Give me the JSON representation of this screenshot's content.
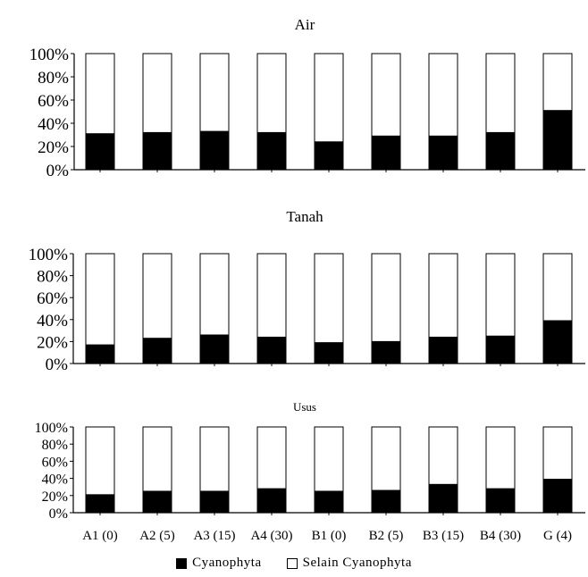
{
  "chart_data": [
    {
      "type": "bar",
      "stacked": true,
      "normalized": true,
      "title": "Air",
      "categories": [
        "A1 (0)",
        "A2 (5)",
        "A3 (15)",
        "A4 (30)",
        "B1 (0)",
        "B2 (5)",
        "B3 (15)",
        "B4 (30)",
        "G (4)"
      ],
      "series": [
        {
          "name": "Cyanophyta",
          "color": "#000000",
          "values": [
            31,
            32,
            33,
            32,
            24,
            29,
            29,
            32,
            51
          ]
        },
        {
          "name": "Selain Cyanophyta",
          "color": "#ffffff",
          "values": [
            69,
            68,
            67,
            68,
            76,
            71,
            71,
            68,
            49
          ]
        }
      ],
      "ylim": [
        0,
        100
      ],
      "yticks": [
        "0%",
        "20%",
        "40%",
        "60%",
        "80%",
        "100%"
      ],
      "show_category_labels": false,
      "grid": false
    },
    {
      "type": "bar",
      "stacked": true,
      "normalized": true,
      "title": "Tanah",
      "categories": [
        "A1 (0)",
        "A2 (5)",
        "A3 (15)",
        "A4 (30)",
        "B1 (0)",
        "B2 (5)",
        "B3 (15)",
        "B4 (30)",
        "G (4)"
      ],
      "series": [
        {
          "name": "Cyanophyta",
          "color": "#000000",
          "values": [
            17,
            23,
            26,
            24,
            19,
            20,
            24,
            25,
            39
          ]
        },
        {
          "name": "Selain Cyanophyta",
          "color": "#ffffff",
          "values": [
            83,
            77,
            74,
            76,
            81,
            80,
            76,
            75,
            61
          ]
        }
      ],
      "ylim": [
        0,
        100
      ],
      "yticks": [
        "0%",
        "20%",
        "40%",
        "60%",
        "80%",
        "100%"
      ],
      "show_category_labels": false,
      "grid": false
    },
    {
      "type": "bar",
      "stacked": true,
      "normalized": true,
      "title": "Usus",
      "categories": [
        "A1 (0)",
        "A2 (5)",
        "A3 (15)",
        "A4 (30)",
        "B1 (0)",
        "B2 (5)",
        "B3 (15)",
        "B4 (30)",
        "G (4)"
      ],
      "series": [
        {
          "name": "Cyanophyta",
          "color": "#000000",
          "values": [
            21,
            25,
            25,
            28,
            25,
            26,
            33,
            28,
            39
          ]
        },
        {
          "name": "Selain Cyanophyta",
          "color": "#ffffff",
          "values": [
            79,
            75,
            75,
            72,
            75,
            74,
            67,
            72,
            61
          ]
        }
      ],
      "ylim": [
        0,
        100
      ],
      "yticks": [
        "0%",
        "20%",
        "40%",
        "60%",
        "80%",
        "100%"
      ],
      "show_category_labels": true,
      "grid": false
    }
  ],
  "legend": {
    "placement": "bottom-center",
    "items": [
      {
        "label": "Cyanophyta",
        "color": "#000000"
      },
      {
        "label": "Selain Cyanophyta",
        "color": "#ffffff"
      }
    ]
  }
}
